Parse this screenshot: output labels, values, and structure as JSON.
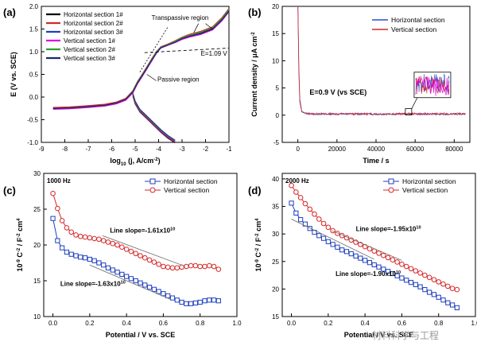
{
  "watermark": "材料科学与工程",
  "chart_data": [
    {
      "panel": "(a)",
      "type": "line",
      "xlabel": "log10 (j, A/cm-2)",
      "ylabel": "E (V vs. SCE)",
      "xlim": [
        -9,
        -1
      ],
      "ylim": [
        -1.0,
        2.0
      ],
      "xticks": [
        -9,
        -8,
        -7,
        -6,
        -5,
        -4,
        -3,
        -2,
        -1
      ],
      "yticks": [
        -1.0,
        -0.5,
        0.0,
        0.5,
        1.0,
        1.5,
        2.0
      ],
      "ytick_labels": [
        "-1.0",
        "-0.5",
        "0.0",
        "0.5",
        "1.0",
        "1.5",
        "2.0"
      ],
      "legend_position": "top-left",
      "annotations": [
        "Transpassive region",
        "Passive region",
        "E=1.09 V"
      ],
      "series": [
        {
          "name": "Horizontal section 1#",
          "color": "#000000",
          "x": [
            -1.0,
            -1.3,
            -1.7,
            -2.2,
            -2.7,
            -3.0,
            -3.3,
            -3.6,
            -3.9,
            -4.1,
            -4.3,
            -4.5,
            -4.7,
            -4.9,
            -5.1,
            -5.4,
            -5.8,
            -6.3,
            -7.0,
            -7.8,
            -8.5
          ],
          "y": [
            1.92,
            1.72,
            1.52,
            1.42,
            1.35,
            1.3,
            1.22,
            1.16,
            1.1,
            0.98,
            0.82,
            0.65,
            0.48,
            0.32,
            0.12,
            -0.04,
            -0.12,
            -0.17,
            -0.2,
            -0.23,
            -0.24
          ]
        },
        {
          "name": "Horizontal section 2#",
          "color": "#d62728",
          "x": [
            -1.0,
            -1.3,
            -1.7,
            -2.2,
            -2.7,
            -3.0,
            -3.3,
            -3.6,
            -3.9,
            -4.1,
            -4.3,
            -4.5,
            -4.7,
            -4.9,
            -5.1,
            -5.4,
            -5.8,
            -6.3,
            -7.0,
            -7.8,
            -8.5
          ],
          "y": [
            1.95,
            1.75,
            1.55,
            1.45,
            1.38,
            1.32,
            1.24,
            1.17,
            1.11,
            1.0,
            0.84,
            0.67,
            0.5,
            0.34,
            0.14,
            -0.03,
            -0.11,
            -0.16,
            -0.19,
            -0.22,
            -0.23
          ]
        },
        {
          "name": "Horizontal section 3#",
          "color": "#1f3fbf",
          "x": [
            -1.0,
            -1.3,
            -1.7,
            -2.2,
            -2.7,
            -3.0,
            -3.3,
            -3.6,
            -3.9,
            -4.1,
            -4.3,
            -4.5,
            -4.7,
            -4.9,
            -5.1,
            -5.4,
            -5.8,
            -6.3,
            -7.0,
            -7.8,
            -8.5
          ],
          "y": [
            1.9,
            1.7,
            1.5,
            1.4,
            1.33,
            1.28,
            1.21,
            1.15,
            1.09,
            0.97,
            0.8,
            0.63,
            0.46,
            0.3,
            0.1,
            -0.06,
            -0.14,
            -0.19,
            -0.22,
            -0.25,
            -0.26
          ]
        },
        {
          "name": "Vertical section 1#",
          "color": "#e000e0",
          "x": [
            -1.0,
            -1.3,
            -1.7,
            -2.2,
            -2.7,
            -3.0,
            -3.3,
            -3.6,
            -3.9,
            -4.1,
            -4.3,
            -4.5,
            -4.7,
            -4.9,
            -5.1,
            -5.4,
            -5.8,
            -6.3,
            -7.0,
            -7.8,
            -8.5
          ],
          "y": [
            1.88,
            1.68,
            1.48,
            1.38,
            1.32,
            1.27,
            1.2,
            1.14,
            1.08,
            0.96,
            0.79,
            0.62,
            0.45,
            0.29,
            0.09,
            -0.07,
            -0.15,
            -0.2,
            -0.23,
            -0.26,
            -0.27
          ]
        },
        {
          "name": "Vertical section 2#",
          "color": "#2ca02c",
          "x": [
            -1.0,
            -1.3,
            -1.7,
            -2.2,
            -2.7,
            -3.0,
            -3.3,
            -3.6,
            -3.9,
            -4.1,
            -4.3,
            -4.5,
            -4.7,
            -4.9,
            -5.1,
            -5.4,
            -5.8,
            -6.3,
            -7.0,
            -7.8,
            -8.5
          ],
          "y": [
            1.93,
            1.73,
            1.53,
            1.43,
            1.36,
            1.31,
            1.23,
            1.16,
            1.1,
            0.99,
            0.83,
            0.66,
            0.49,
            0.33,
            0.13,
            -0.05,
            -0.13,
            -0.18,
            -0.21,
            -0.24,
            -0.25
          ]
        },
        {
          "name": "Vertical section 3#",
          "color": "#1a2a6c",
          "x": [
            -1.0,
            -1.3,
            -1.7,
            -2.2,
            -2.7,
            -3.0,
            -3.3,
            -3.6,
            -3.9,
            -4.1,
            -4.3,
            -4.5,
            -4.7,
            -4.9,
            -5.1,
            -5.4,
            -5.8,
            -6.3,
            -7.0,
            -7.8,
            -8.5
          ],
          "y": [
            1.9,
            1.7,
            1.5,
            1.4,
            1.34,
            1.29,
            1.21,
            1.15,
            1.09,
            0.97,
            0.81,
            0.64,
            0.47,
            0.31,
            0.11,
            -0.05,
            -0.13,
            -0.18,
            -0.21,
            -0.24,
            -0.25
          ]
        }
      ],
      "cathodic_branch": {
        "x": [
          -5.1,
          -5.0,
          -4.8,
          -4.5,
          -4.2,
          -3.9,
          -3.6,
          -3.3
        ],
        "y": [
          0.05,
          -0.12,
          -0.3,
          -0.45,
          -0.6,
          -0.75,
          -0.88,
          -0.98
        ]
      }
    },
    {
      "panel": "(b)",
      "type": "line",
      "xlabel": "Time / s",
      "ylabel": "Current density / μA cm-2",
      "xlim": [
        -8000,
        88000
      ],
      "ylim": [
        -5,
        20
      ],
      "xticks": [
        0,
        20000,
        40000,
        60000,
        80000
      ],
      "yticks": [
        -5,
        0,
        5,
        10,
        15,
        20
      ],
      "legend_position": "top-right",
      "annotations": [
        "E=0.9 V (vs SCE)"
      ],
      "series": [
        {
          "name": "Horizontal section",
          "color": "#2c4ecf",
          "x": [
            0,
            500,
            1000,
            2000,
            4000,
            8000,
            20000,
            40000,
            60000,
            86000
          ],
          "y": [
            20,
            8,
            2.5,
            0.6,
            0.3,
            0.2,
            0.2,
            0.2,
            0.2,
            0.2
          ]
        },
        {
          "name": "Vertical section",
          "color": "#d62728",
          "x": [
            0,
            500,
            1000,
            2000,
            4000,
            8000,
            20000,
            40000,
            60000,
            86000
          ],
          "y": [
            20,
            9,
            3,
            0.7,
            0.35,
            0.25,
            0.25,
            0.25,
            0.25,
            0.25
          ]
        }
      ]
    },
    {
      "panel": "(c)",
      "type": "line",
      "xlabel": "Potential / V vs. SCE",
      "ylabel": "10-9 C-2 / F-2 cm4",
      "xlim": [
        -0.05,
        1.0
      ],
      "ylim": [
        10,
        30
      ],
      "xticks": [
        0.0,
        0.2,
        0.4,
        0.6,
        0.8,
        1.0
      ],
      "yticks": [
        10,
        15,
        20,
        25,
        30
      ],
      "freq_label": "1000 Hz",
      "legend_position": "top-right",
      "annotations": [
        "Line slope=-1.61x10",
        "10",
        "Line slope=-1.63x10",
        "10"
      ],
      "series": [
        {
          "name": "Horizontal section",
          "color": "#1f3fbf",
          "marker": "square",
          "x": [
            0.0,
            0.025,
            0.05,
            0.075,
            0.1,
            0.125,
            0.15,
            0.175,
            0.2,
            0.225,
            0.25,
            0.275,
            0.3,
            0.325,
            0.35,
            0.375,
            0.4,
            0.425,
            0.45,
            0.475,
            0.5,
            0.525,
            0.55,
            0.575,
            0.6,
            0.625,
            0.65,
            0.675,
            0.7,
            0.725,
            0.75,
            0.775,
            0.8,
            0.825,
            0.85,
            0.875,
            0.9
          ],
          "y": [
            23.7,
            20.6,
            19.6,
            19.0,
            18.7,
            18.5,
            18.3,
            18.2,
            18.0,
            17.8,
            17.5,
            17.2,
            16.8,
            16.5,
            16.2,
            15.9,
            15.6,
            15.3,
            15.0,
            14.7,
            14.4,
            14.1,
            13.8,
            13.5,
            13.2,
            12.9,
            12.6,
            12.3,
            12.0,
            11.8,
            11.8,
            11.9,
            12.0,
            12.2,
            12.3,
            12.3,
            12.2
          ]
        },
        {
          "name": "Vertical section",
          "color": "#d62728",
          "marker": "circle",
          "x": [
            0.0,
            0.025,
            0.05,
            0.075,
            0.1,
            0.125,
            0.15,
            0.175,
            0.2,
            0.225,
            0.25,
            0.275,
            0.3,
            0.325,
            0.35,
            0.375,
            0.4,
            0.425,
            0.45,
            0.475,
            0.5,
            0.525,
            0.55,
            0.575,
            0.6,
            0.625,
            0.65,
            0.675,
            0.7,
            0.725,
            0.75,
            0.775,
            0.8,
            0.825,
            0.85,
            0.875,
            0.9
          ],
          "y": [
            27.2,
            25.1,
            23.4,
            22.4,
            21.8,
            21.4,
            21.2,
            21.1,
            21.0,
            20.9,
            20.8,
            20.6,
            20.4,
            20.2,
            20.0,
            19.7,
            19.4,
            19.1,
            18.8,
            18.5,
            18.2,
            17.9,
            17.6,
            17.3,
            17.0,
            16.9,
            16.8,
            16.8,
            16.9,
            17.0,
            17.1,
            17.1,
            17.0,
            17.0,
            17.1,
            17.0,
            16.6
          ]
        }
      ]
    },
    {
      "panel": "(d)",
      "type": "line",
      "xlabel": "Potential / V vs. SCE",
      "ylabel": "10-9 C-2 / F-2 cm4",
      "xlim": [
        -0.05,
        1.0
      ],
      "ylim": [
        15,
        41
      ],
      "xticks": [
        0.0,
        0.2,
        0.4,
        0.6,
        0.8,
        1.0
      ],
      "yticks": [
        15,
        20,
        25,
        30,
        35,
        40
      ],
      "freq_label": "2000 Hz",
      "legend_position": "top-right",
      "annotations": [
        "Line slope=-1.95x10",
        "10",
        "Line slope=-1.90x10",
        "10"
      ],
      "series": [
        {
          "name": "Horizontal section",
          "color": "#1f3fbf",
          "marker": "square",
          "x": [
            0.0,
            0.025,
            0.05,
            0.075,
            0.1,
            0.125,
            0.15,
            0.175,
            0.2,
            0.225,
            0.25,
            0.275,
            0.3,
            0.325,
            0.35,
            0.375,
            0.4,
            0.425,
            0.45,
            0.475,
            0.5,
            0.525,
            0.55,
            0.575,
            0.6,
            0.625,
            0.65,
            0.675,
            0.7,
            0.725,
            0.75,
            0.775,
            0.8,
            0.825,
            0.85,
            0.875,
            0.9
          ],
          "y": [
            35.6,
            33.8,
            32.6,
            31.8,
            31.0,
            30.3,
            29.7,
            29.2,
            28.6,
            28.1,
            27.6,
            27.1,
            26.8,
            26.4,
            26.0,
            25.6,
            25.2,
            24.8,
            24.4,
            24.0,
            23.6,
            23.2,
            22.8,
            22.4,
            22.0,
            21.6,
            21.2,
            20.8,
            20.4,
            19.9,
            19.4,
            19.0,
            18.5,
            18.0,
            17.5,
            17.1,
            16.6
          ]
        },
        {
          "name": "Vertical section",
          "color": "#d62728",
          "marker": "circle",
          "x": [
            0.0,
            0.025,
            0.05,
            0.075,
            0.1,
            0.125,
            0.15,
            0.175,
            0.2,
            0.225,
            0.25,
            0.275,
            0.3,
            0.325,
            0.35,
            0.375,
            0.4,
            0.425,
            0.45,
            0.475,
            0.5,
            0.525,
            0.55,
            0.575,
            0.6,
            0.625,
            0.65,
            0.675,
            0.7,
            0.725,
            0.75,
            0.775,
            0.8,
            0.825,
            0.85,
            0.875,
            0.9
          ],
          "y": [
            38.8,
            37.6,
            36.6,
            35.5,
            34.5,
            33.6,
            32.7,
            31.9,
            31.2,
            30.6,
            30.1,
            29.7,
            29.3,
            28.9,
            28.5,
            28.1,
            27.7,
            27.3,
            26.9,
            26.5,
            26.1,
            25.7,
            25.3,
            24.9,
            24.5,
            24.1,
            23.7,
            23.3,
            22.9,
            22.5,
            22.1,
            21.7,
            21.3,
            20.9,
            20.5,
            20.1,
            19.9
          ]
        }
      ]
    }
  ]
}
